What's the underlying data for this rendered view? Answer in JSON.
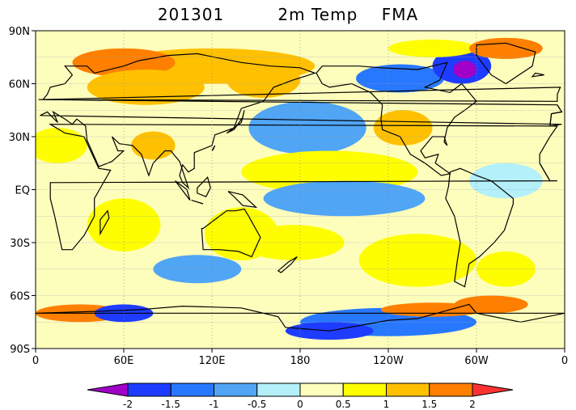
{
  "title": {
    "date": "201301",
    "variable": "2m Temp",
    "season": "FMA"
  },
  "map": {
    "projection": "cylindrical equidistant, 0-360 longitude",
    "lat_range": [
      -90,
      90
    ],
    "lon_range": [
      0,
      360
    ],
    "lat_ticks": [
      {
        "lat": 90,
        "label": "90N"
      },
      {
        "lat": 60,
        "label": "60N"
      },
      {
        "lat": 30,
        "label": "30N"
      },
      {
        "lat": 0,
        "label": "EQ"
      },
      {
        "lat": -30,
        "label": "30S"
      },
      {
        "lat": -60,
        "label": "60S"
      },
      {
        "lat": -90,
        "label": "90S"
      }
    ],
    "lon_ticks": [
      {
        "lon": 0,
        "label": "0"
      },
      {
        "lon": 60,
        "label": "60E"
      },
      {
        "lon": 120,
        "label": "120E"
      },
      {
        "lon": 180,
        "label": "180"
      },
      {
        "lon": 240,
        "label": "120W"
      },
      {
        "lon": 300,
        "label": "60W"
      },
      {
        "lon": 360,
        "label": "0"
      }
    ],
    "background_color": "#fefebc"
  },
  "colorbar": {
    "levels": [
      "-2",
      "-1.5",
      "-1",
      "-0.5",
      "0",
      "0.5",
      "1",
      "1.5",
      "2"
    ],
    "colors": [
      "#a000c8",
      "#1e3cff",
      "#2878ff",
      "#50a5f5",
      "#b4f0fa",
      "#fefebc",
      "#fefe00",
      "#ffc000",
      "#ff7f00",
      "#ff3232"
    ]
  },
  "anomaly_patches": [
    {
      "lon": 120,
      "lat": 70,
      "rx": 70,
      "ry": 10,
      "value": 1.4
    },
    {
      "lon": 60,
      "lat": 72,
      "rx": 35,
      "ry": 8,
      "value": 1.9
    },
    {
      "lon": 75,
      "lat": 58,
      "rx": 40,
      "ry": 10,
      "value": 1.2
    },
    {
      "lon": 155,
      "lat": 62,
      "rx": 25,
      "ry": 10,
      "value": 1.3
    },
    {
      "lon": 248,
      "lat": 63,
      "rx": 30,
      "ry": 8,
      "value": -1.4
    },
    {
      "lon": 290,
      "lat": 70,
      "rx": 20,
      "ry": 10,
      "value": -1.6
    },
    {
      "lon": 292,
      "lat": 68,
      "rx": 8,
      "ry": 5,
      "value": -2.1
    },
    {
      "lon": 270,
      "lat": 80,
      "rx": 30,
      "ry": 5,
      "value": 0.6
    },
    {
      "lon": 320,
      "lat": 80,
      "rx": 25,
      "ry": 6,
      "value": 1.6
    },
    {
      "lon": 250,
      "lat": 35,
      "rx": 20,
      "ry": 10,
      "value": 1.1
    },
    {
      "lon": 185,
      "lat": 35,
      "rx": 40,
      "ry": 15,
      "value": -0.6
    },
    {
      "lon": 200,
      "lat": 10,
      "rx": 60,
      "ry": 12,
      "value": 0.6
    },
    {
      "lon": 210,
      "lat": -5,
      "rx": 55,
      "ry": 10,
      "value": -0.6
    },
    {
      "lon": 260,
      "lat": -40,
      "rx": 40,
      "ry": 15,
      "value": 0.9
    },
    {
      "lon": 175,
      "lat": -30,
      "rx": 35,
      "ry": 10,
      "value": 0.8
    },
    {
      "lon": 140,
      "lat": -25,
      "rx": 25,
      "ry": 15,
      "value": 0.6
    },
    {
      "lon": 110,
      "lat": -45,
      "rx": 30,
      "ry": 8,
      "value": -0.7
    },
    {
      "lon": 60,
      "lat": -20,
      "rx": 25,
      "ry": 15,
      "value": 0.9
    },
    {
      "lon": 30,
      "lat": -70,
      "rx": 30,
      "ry": 5,
      "value": 1.5
    },
    {
      "lon": 60,
      "lat": -70,
      "rx": 20,
      "ry": 5,
      "value": -1.7
    },
    {
      "lon": 240,
      "lat": -75,
      "rx": 60,
      "ry": 8,
      "value": -1.2
    },
    {
      "lon": 200,
      "lat": -80,
      "rx": 30,
      "ry": 5,
      "value": -1.8
    },
    {
      "lon": 310,
      "lat": -65,
      "rx": 25,
      "ry": 5,
      "value": 1.7
    },
    {
      "lon": 270,
      "lat": -68,
      "rx": 35,
      "ry": 4,
      "value": 1.6
    },
    {
      "lon": 80,
      "lat": 25,
      "rx": 15,
      "ry": 8,
      "value": 1.1
    },
    {
      "lon": 15,
      "lat": 25,
      "rx": 20,
      "ry": 10,
      "value": 0.7
    },
    {
      "lon": 320,
      "lat": 5,
      "rx": 25,
      "ry": 10,
      "value": -0.5
    },
    {
      "lon": 320,
      "lat": -45,
      "rx": 20,
      "ry": 10,
      "value": 0.8
    }
  ]
}
